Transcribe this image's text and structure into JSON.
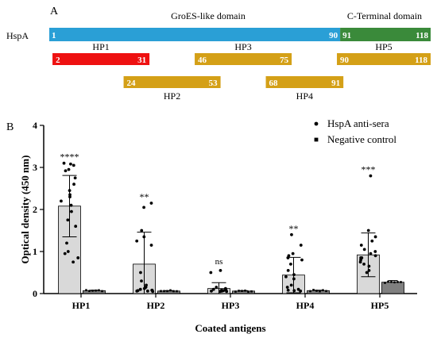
{
  "panel_a": {
    "label": "A",
    "protein_label": "HspA",
    "domain_labels": [
      {
        "id": "groes",
        "text": "GroES-like domain"
      },
      {
        "id": "cterm",
        "text": "C-Terminal domain"
      }
    ],
    "full_length": {
      "segments": [
        {
          "id": "groes",
          "start": 1,
          "end": 90,
          "start_label": "1",
          "end_label": "90",
          "color": "#2a9fd6"
        },
        {
          "id": "cterm",
          "start": 91,
          "end": 118,
          "start_label": "91",
          "end_label": "118",
          "color": "#3a8a3a"
        }
      ]
    },
    "fragments": [
      {
        "id": "HP1",
        "label": "HP1",
        "start": 2,
        "end": 31,
        "start_label": "2",
        "end_label": "31",
        "color": "#ee1111",
        "row": 1,
        "label_pos": "above"
      },
      {
        "id": "HP3",
        "label": "HP3",
        "start": 46,
        "end": 75,
        "start_label": "46",
        "end_label": "75",
        "color": "#d4a017",
        "row": 1,
        "label_pos": "above"
      },
      {
        "id": "HP5",
        "label": "HP5",
        "start": 90,
        "end": 118,
        "start_label": "90",
        "end_label": "118",
        "color": "#d4a017",
        "row": 1,
        "label_pos": "above"
      },
      {
        "id": "HP2",
        "label": "HP2",
        "start": 24,
        "end": 53,
        "start_label": "24",
        "end_label": "53",
        "color": "#d4a017",
        "row": 2,
        "label_pos": "below"
      },
      {
        "id": "HP4",
        "label": "HP4",
        "start": 68,
        "end": 91,
        "start_label": "68",
        "end_label": "91",
        "color": "#d4a017",
        "row": 2,
        "label_pos": "below"
      }
    ]
  },
  "chart_data": {
    "type": "bar",
    "panel_label": "B",
    "categories": [
      "HP1",
      "HP2",
      "HP3",
      "HP4",
      "HP5"
    ],
    "xlabel": "Coated antigens",
    "ylabel": "Optical density (450 nm)",
    "ylim": [
      0,
      4
    ],
    "yticks": [
      0,
      1,
      2,
      3,
      4
    ],
    "legend": {
      "position": "top-right",
      "entries": [
        {
          "name": "HspA anti-sera",
          "marker": "circle"
        },
        {
          "name": "Negative control",
          "marker": "square"
        }
      ]
    },
    "series": [
      {
        "name": "HspA anti-sera",
        "fill": "#d9d9d9",
        "values": [
          2.08,
          0.7,
          0.12,
          0.44,
          0.92
        ],
        "errors": [
          0.73,
          0.76,
          0.14,
          0.42,
          0.52
        ],
        "points": [
          [
            3.1,
            3.05,
            3.08,
            2.95,
            2.92,
            2.75,
            2.6,
            2.45,
            2.35,
            2.3,
            2.2,
            2.1,
            1.95,
            1.75,
            1.6,
            1.2,
            1.0,
            0.95,
            0.85,
            0.75
          ],
          [
            2.15,
            2.05,
            1.5,
            1.35,
            1.25,
            1.15,
            0.5,
            0.3,
            0.2,
            0.15,
            0.12,
            0.1,
            0.08,
            0.08,
            0.07,
            0.06,
            0.06,
            0.05
          ],
          [
            0.55,
            0.5,
            0.15,
            0.12,
            0.1,
            0.08,
            0.08,
            0.07,
            0.06,
            0.06,
            0.05,
            0.05
          ],
          [
            1.4,
            1.15,
            0.95,
            0.9,
            0.85,
            0.8,
            0.7,
            0.55,
            0.45,
            0.4,
            0.35,
            0.2,
            0.15,
            0.1,
            0.08,
            0.07,
            0.06
          ],
          [
            2.8,
            1.5,
            1.35,
            1.25,
            1.15,
            1.05,
            1.0,
            0.95,
            0.9,
            0.85,
            0.85,
            0.8,
            0.75,
            0.7,
            0.65,
            0.55,
            0.5
          ]
        ],
        "significance": [
          "****",
          "**",
          "ns",
          "**",
          "***"
        ]
      },
      {
        "name": "Negative control",
        "fill": "#808080",
        "values": [
          0.07,
          0.06,
          0.06,
          0.07,
          0.27
        ],
        "errors": [
          0.01,
          0.01,
          0.01,
          0.01,
          0.04
        ]
      }
    ]
  }
}
